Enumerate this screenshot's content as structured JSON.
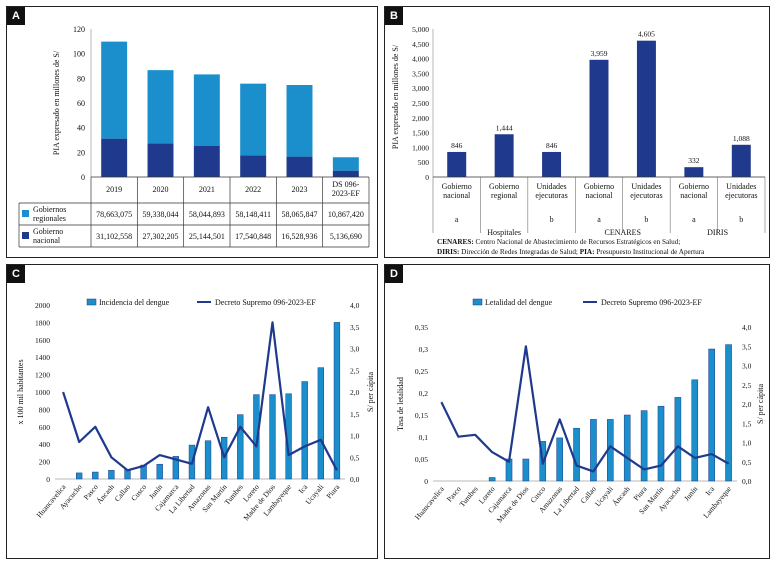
{
  "panels": {
    "A": {
      "label": "A"
    },
    "B": {
      "label": "B"
    },
    "C": {
      "label": "C"
    },
    "D": {
      "label": "D"
    }
  },
  "colors": {
    "light": "#1A8FCB",
    "dark": "#1F3A8C",
    "line": "#1F3A8C"
  },
  "notes_b": {
    "cenares_key": "CENARES:",
    "cenares_text": " Centro Nacional de Abastecimiento de Recursos Estratégicos en Salud;",
    "diris_key": "DIRIS:",
    "diris_text": " Dirección de Redes Integradas de Salud; ",
    "pia_key": "PIA:",
    "pia_text": " Presupuesto Institucional de Apertura"
  },
  "chart_data": [
    {
      "panel": "A",
      "type": "bar",
      "stacked": true,
      "ylabel": "PIA expresado en millones de S/",
      "ylim": [
        0,
        120
      ],
      "yticks": [
        "0",
        "20",
        "40",
        "60",
        "80",
        "100",
        "120"
      ],
      "categories": [
        "2019",
        "2020",
        "2021",
        "2022",
        "2023",
        "DS 096-2023-EF"
      ],
      "series": [
        {
          "name": "Gobierno nacional",
          "values": [
            31.102558,
            27.302205,
            25.144501,
            17.540848,
            16.528936,
            5.13669
          ],
          "table": [
            "31,102,558",
            "27,302,205",
            "25,144,501",
            "17,540,848",
            "16,528,936",
            "5,136,690"
          ]
        },
        {
          "name": "Gobiernos regionales",
          "values": [
            78.663075,
            59.338044,
            58.044893,
            58.148411,
            58.065847,
            10.86742
          ],
          "table": [
            "78,663,075",
            "59,338,044",
            "58,044,893",
            "58,148,411",
            "58,065,847",
            "10,867,420"
          ]
        }
      ],
      "table_rows": [
        {
          "label": "Gobiernos regionales",
          "series": 1
        },
        {
          "label": "Gobierno nacional",
          "series": 0
        }
      ]
    },
    {
      "panel": "B",
      "type": "bar",
      "ylabel": "PIA expresado en millones de S/",
      "ylim": [
        0,
        5000
      ],
      "yticks": [
        "0",
        "500",
        "1,000",
        "1,500",
        "2,000",
        "2,500",
        "3,000",
        "3,500",
        "4,000",
        "4,500",
        "5,000"
      ],
      "categories": [
        "Gobierno nacional",
        "Gobierno regional",
        "Unidades ejecutoras",
        "Gobierno nacional",
        "Unidades ejecutoras",
        "Gobierno nacional",
        "Unidades ejecutoras"
      ],
      "values": [
        846,
        1444,
        846,
        3959,
        4605,
        332,
        1088
      ],
      "value_labels": [
        "846",
        "1,444",
        "846",
        "3,959",
        "4,605",
        "332",
        "1,088"
      ],
      "letters": [
        "a",
        "",
        "b",
        "a",
        "b",
        "a",
        "b"
      ],
      "groups": [
        {
          "name": "Hospitales",
          "start": 0,
          "end": 2
        },
        {
          "name": "CENARES",
          "start": 3,
          "end": 4
        },
        {
          "name": "DIRIS",
          "start": 5,
          "end": 6
        }
      ]
    },
    {
      "panel": "C",
      "type": "bar",
      "ylabel": "x 100 mil habitantes",
      "y2label": "S/ per cápita",
      "ylim": [
        0,
        2000
      ],
      "y2lim": [
        0,
        4.0
      ],
      "yticks": [
        "0",
        "200",
        "400",
        "600",
        "800",
        "1000",
        "1200",
        "1400",
        "1600",
        "1800",
        "2000"
      ],
      "y2ticks": [
        "0,0",
        "0,5",
        "1,0",
        "1,5",
        "2,0",
        "2,5",
        "3,0",
        "3,5",
        "4,0"
      ],
      "categories": [
        "Huancavelica",
        "Ayacucho",
        "Pasco",
        "Áncash",
        "Callao",
        "Cusco",
        "Junín",
        "Cajamarca",
        "La Libertad",
        "Amazonas",
        "San Martín",
        "Tumbes",
        "Loreto",
        "Madre de Dios",
        "Lambayeque",
        "Ica",
        "Ucayali",
        "Piura"
      ],
      "series": [
        {
          "name": "Incidencia del dengue",
          "type": "bar",
          "axis": "left",
          "values": [
            0,
            70,
            80,
            100,
            110,
            160,
            170,
            260,
            390,
            440,
            480,
            740,
            970,
            970,
            980,
            1120,
            1280,
            1800
          ]
        },
        {
          "name": "Decreto Supremo 096-2023-EF",
          "type": "line",
          "axis": "right",
          "values": [
            2.0,
            0.85,
            1.2,
            0.5,
            0.2,
            0.3,
            0.55,
            0.45,
            0.35,
            1.65,
            0.5,
            1.2,
            0.75,
            3.6,
            0.55,
            0.75,
            0.9,
            0.2
          ]
        }
      ]
    },
    {
      "panel": "D",
      "type": "bar",
      "ylabel": "Tasa de letalidad",
      "y2label": "S/ per cápita",
      "ylim": [
        0,
        0.35
      ],
      "y2lim": [
        0,
        4.0
      ],
      "yticks": [
        "0",
        "0,05",
        "0,1",
        "0,15",
        "0,2",
        "0,25",
        "0,3",
        "0,35"
      ],
      "y2ticks": [
        "0,0",
        "0,5",
        "1,0",
        "1,5",
        "2,0",
        "2,5",
        "3,0",
        "3,5",
        "4,0"
      ],
      "categories": [
        "Huancavelica",
        "Pasco",
        "Tumbes",
        "Loreto",
        "Cajamarca",
        "Madre de Dios",
        "Cusco",
        "Amazonas",
        "La Libertad",
        "Callao",
        "Ucayali",
        "Áncash",
        "Piura",
        "San Martín",
        "Ayacucho",
        "Junín",
        "Ica",
        "Lambayeque"
      ],
      "series": [
        {
          "name": "Letalidad del dengue",
          "type": "bar",
          "axis": "left",
          "values": [
            0,
            0,
            0,
            0.008,
            0.05,
            0.05,
            0.09,
            0.098,
            0.12,
            0.14,
            0.14,
            0.15,
            0.16,
            0.17,
            0.19,
            0.23,
            0.3,
            0.31
          ]
        },
        {
          "name": "Decreto Supremo 096-2023-EF",
          "type": "line",
          "axis": "right",
          "values": [
            2.05,
            1.15,
            1.2,
            0.75,
            0.5,
            3.5,
            0.45,
            1.6,
            0.4,
            0.25,
            0.9,
            0.6,
            0.3,
            0.4,
            0.9,
            0.6,
            0.7,
            0.45
          ]
        }
      ]
    }
  ]
}
